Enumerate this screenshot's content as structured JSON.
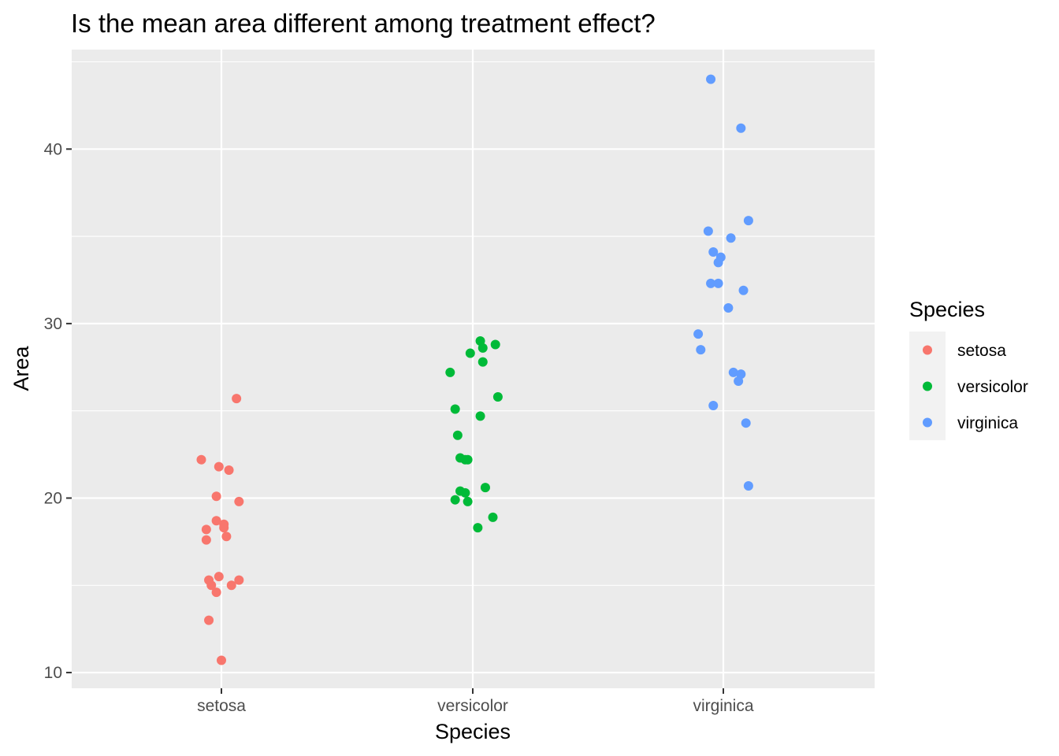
{
  "chart_data": {
    "type": "scatter",
    "title": "Is the mean area different among treatment effect?",
    "xlabel": "Species",
    "ylabel": "Area",
    "categories": [
      "setosa",
      "versicolor",
      "virginica"
    ],
    "ylim": [
      9.1,
      45.7
    ],
    "yticks": [
      10,
      20,
      30,
      40
    ],
    "grid": true,
    "legend": {
      "title": "Species",
      "placement": "right",
      "entries": [
        "setosa",
        "versicolor",
        "virginica"
      ]
    },
    "colors": {
      "setosa": "#F8766D",
      "versicolor": "#00BA38",
      "virginica": "#619CFF",
      "panel_bg": "#EBEBEB",
      "grid": "#FFFFFF"
    },
    "series": [
      {
        "name": "setosa",
        "points": [
          {
            "jitter": -0.08,
            "y": 22.2
          },
          {
            "jitter": -0.01,
            "y": 21.8
          },
          {
            "jitter": 0.03,
            "y": 21.6
          },
          {
            "jitter": 0.06,
            "y": 25.7
          },
          {
            "jitter": -0.02,
            "y": 20.1
          },
          {
            "jitter": 0.07,
            "y": 19.8
          },
          {
            "jitter": -0.02,
            "y": 18.7
          },
          {
            "jitter": 0.01,
            "y": 18.5
          },
          {
            "jitter": 0.01,
            "y": 18.3
          },
          {
            "jitter": -0.06,
            "y": 18.2
          },
          {
            "jitter": 0.02,
            "y": 17.8
          },
          {
            "jitter": -0.06,
            "y": 17.6
          },
          {
            "jitter": -0.01,
            "y": 15.5
          },
          {
            "jitter": -0.05,
            "y": 15.3
          },
          {
            "jitter": 0.07,
            "y": 15.3
          },
          {
            "jitter": -0.04,
            "y": 15.0
          },
          {
            "jitter": 0.04,
            "y": 15.0
          },
          {
            "jitter": -0.02,
            "y": 14.6
          },
          {
            "jitter": -0.05,
            "y": 13.0
          },
          {
            "jitter": 0.0,
            "y": 10.7
          }
        ]
      },
      {
        "name": "versicolor",
        "points": [
          {
            "jitter": 0.03,
            "y": 29.0
          },
          {
            "jitter": 0.09,
            "y": 28.8
          },
          {
            "jitter": 0.04,
            "y": 28.6
          },
          {
            "jitter": -0.01,
            "y": 28.3
          },
          {
            "jitter": 0.04,
            "y": 27.8
          },
          {
            "jitter": -0.09,
            "y": 27.2
          },
          {
            "jitter": 0.1,
            "y": 25.8
          },
          {
            "jitter": -0.07,
            "y": 25.1
          },
          {
            "jitter": 0.03,
            "y": 24.7
          },
          {
            "jitter": -0.06,
            "y": 23.6
          },
          {
            "jitter": -0.05,
            "y": 22.3
          },
          {
            "jitter": -0.03,
            "y": 22.2
          },
          {
            "jitter": -0.02,
            "y": 22.2
          },
          {
            "jitter": 0.05,
            "y": 20.6
          },
          {
            "jitter": -0.05,
            "y": 20.4
          },
          {
            "jitter": -0.03,
            "y": 20.3
          },
          {
            "jitter": -0.07,
            "y": 19.9
          },
          {
            "jitter": -0.02,
            "y": 19.8
          },
          {
            "jitter": 0.08,
            "y": 18.9
          },
          {
            "jitter": 0.02,
            "y": 18.3
          }
        ]
      },
      {
        "name": "virginica",
        "points": [
          {
            "jitter": -0.05,
            "y": 44.0
          },
          {
            "jitter": 0.07,
            "y": 41.2
          },
          {
            "jitter": 0.1,
            "y": 35.9
          },
          {
            "jitter": -0.06,
            "y": 35.3
          },
          {
            "jitter": 0.03,
            "y": 34.9
          },
          {
            "jitter": -0.04,
            "y": 34.1
          },
          {
            "jitter": -0.01,
            "y": 33.8
          },
          {
            "jitter": -0.02,
            "y": 33.5
          },
          {
            "jitter": -0.05,
            "y": 32.3
          },
          {
            "jitter": -0.02,
            "y": 32.3
          },
          {
            "jitter": 0.08,
            "y": 31.9
          },
          {
            "jitter": 0.02,
            "y": 30.9
          },
          {
            "jitter": -0.1,
            "y": 29.4
          },
          {
            "jitter": -0.09,
            "y": 28.5
          },
          {
            "jitter": 0.04,
            "y": 27.2
          },
          {
            "jitter": 0.07,
            "y": 27.1
          },
          {
            "jitter": 0.06,
            "y": 26.7
          },
          {
            "jitter": -0.04,
            "y": 25.3
          },
          {
            "jitter": 0.09,
            "y": 24.3
          },
          {
            "jitter": 0.1,
            "y": 20.7
          }
        ]
      }
    ]
  }
}
